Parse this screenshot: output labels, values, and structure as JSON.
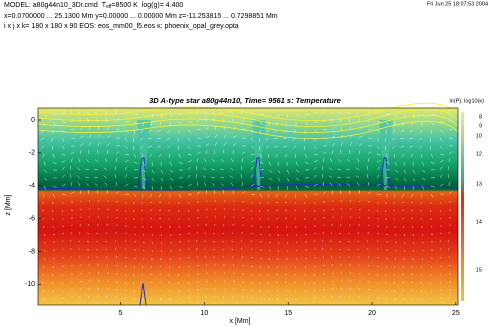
{
  "header": {
    "model": "MODEL: a80g44n10_3Dr.cmd",
    "teff_label": "T",
    "teff_sub": "eff",
    "teff_value": "=8500 K",
    "logg": "log(g)= 4.400",
    "ranges": "x=0.0700000 ... 25.1300 Mm  y=0.00000 ... 0.00000 Mm  z=-11.253815 ... 0.7298851 Mm",
    "grid": "i x j x k= 180 x 180 x 90 EOS: eos_mm00_l5.eos  κ: phoenix_opal_grey.opta",
    "timestamp": "Fri Jun 25 18:07:53 2004"
  },
  "chart_data": {
    "type": "heatmap",
    "title": "3D A-type star a80g44n10, Time= 9561 s: Temperature",
    "x_label": "x [Mm]",
    "y_label": "z [Mm]",
    "xlim": [
      0.07,
      25.13
    ],
    "ylim": [
      -11.253815,
      0.7298851
    ],
    "xticks": [
      5,
      10,
      15,
      20,
      25
    ],
    "yticks": [
      0,
      -2,
      -4,
      -6,
      -8,
      -10
    ],
    "colorbar": {
      "label": "ln(P), log10(κ)",
      "ticks": [
        8,
        9,
        10,
        12,
        13,
        14,
        15
      ]
    }
  }
}
